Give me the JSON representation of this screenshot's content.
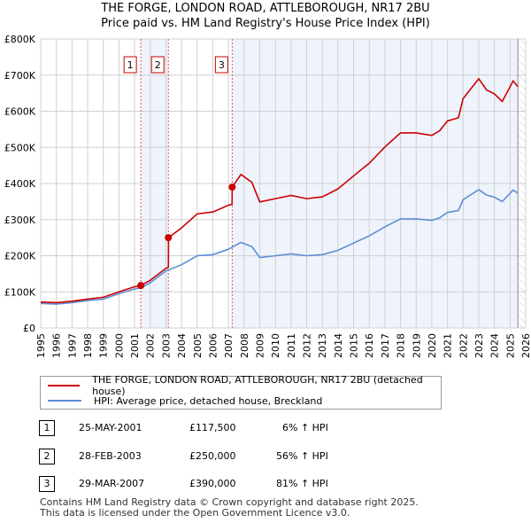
{
  "chart_data": {
    "type": "line",
    "title": "THE FORGE, LONDON ROAD, ATTLEBOROUGH, NR17 2BU",
    "subtitle": "Price paid vs. HM Land Registry's House Price Index (HPI)",
    "xlim": [
      1995,
      2026
    ],
    "ylim": [
      0,
      800000
    ],
    "y_ticks": [
      "£0",
      "£100K",
      "£200K",
      "£300K",
      "£400K",
      "£500K",
      "£600K",
      "£700K",
      "£800K"
    ],
    "x_ticks": [
      "1995",
      "1996",
      "1997",
      "1998",
      "1999",
      "2000",
      "2001",
      "2002",
      "2003",
      "2004",
      "2005",
      "2006",
      "2007",
      "2008",
      "2009",
      "2010",
      "2011",
      "2012",
      "2013",
      "2014",
      "2015",
      "2016",
      "2017",
      "2018",
      "2019",
      "2020",
      "2021",
      "2022",
      "2023",
      "2024",
      "2025",
      "2026"
    ],
    "series": [
      {
        "name": "THE FORGE, LONDON ROAD, ATTLEBOROUGH, NR17 2BU (detached house)",
        "color": "#cc0000",
        "x": [
          1995,
          1996,
          1997,
          1998,
          1999,
          2000,
          2001,
          2001.4,
          2002,
          2003,
          2003.16,
          2003.17,
          2004,
          2005,
          2006,
          2007,
          2007.23,
          2007.24,
          2007.8,
          2008.5,
          2009,
          2010,
          2011,
          2012,
          2013,
          2014,
          2015,
          2016,
          2017,
          2018,
          2019,
          2020,
          2020.5,
          2021,
          2021.7,
          2022,
          2023,
          2023.5,
          2024,
          2024.5,
          2025.2,
          2025.5
        ],
        "y": [
          72000,
          70000,
          74000,
          80000,
          85000,
          100000,
          114000,
          117500,
          132000,
          165000,
          168000,
          250000,
          277000,
          316000,
          321000,
          340000,
          342000,
          390000,
          425000,
          403000,
          349000,
          358000,
          367000,
          358000,
          363000,
          385000,
          421000,
          456000,
          501000,
          540000,
          540000,
          533000,
          546000,
          573000,
          582000,
          635000,
          690000,
          659000,
          648000,
          627000,
          684000,
          668000
        ]
      },
      {
        "name": "HPI: Average price, detached house, Breckland",
        "color": "#5b8fd4",
        "x": [
          1995,
          1996,
          1997,
          1998,
          1999,
          2000,
          2001,
          2001.4,
          2002,
          2003,
          2004,
          2005,
          2006,
          2007,
          2007.8,
          2008.5,
          2009,
          2010,
          2011,
          2012,
          2013,
          2014,
          2015,
          2016,
          2017,
          2018,
          2019,
          2020,
          2020.5,
          2021,
          2021.7,
          2022,
          2023,
          2023.5,
          2024,
          2024.5,
          2025.2,
          2025.5
        ],
        "y": [
          68000,
          66000,
          70000,
          76000,
          80000,
          95000,
          108000,
          111000,
          125000,
          158000,
          175000,
          200000,
          203000,
          218000,
          237000,
          225000,
          195000,
          200000,
          205000,
          200000,
          203000,
          215000,
          235000,
          255000,
          280000,
          302000,
          302000,
          298000,
          305000,
          320000,
          325000,
          355000,
          383000,
          368000,
          362000,
          350000,
          382000,
          373000
        ]
      }
    ],
    "sales": [
      {
        "label": "1",
        "x": 2001.4,
        "y": 117500,
        "date": "25-MAY-2001",
        "price": "£117,500",
        "hpi": "6% ↑ HPI"
      },
      {
        "label": "2",
        "x": 2003.16,
        "y": 250000,
        "date": "28-FEB-2003",
        "price": "£250,000",
        "hpi": "56% ↑ HPI"
      },
      {
        "label": "3",
        "x": 2007.24,
        "y": 390000,
        "date": "29-MAR-2007",
        "price": "£390,000",
        "hpi": "81% ↑ HPI"
      }
    ],
    "shaded_ranges": [
      [
        2001.4,
        2003.16
      ],
      [
        2007.24,
        2025.5
      ]
    ],
    "projection_start": 2025.5,
    "grid": true,
    "legend": "below"
  },
  "footer": [
    "Contains HM Land Registry data © Crown copyright and database right 2025.",
    "This data is licensed under the Open Government Licence v3.0."
  ]
}
